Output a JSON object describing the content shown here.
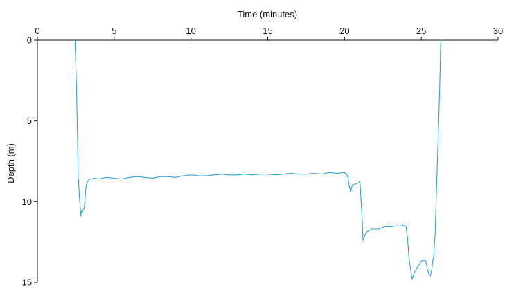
{
  "chart_data": {
    "type": "line",
    "xlabel": "Time (minutes)",
    "ylabel": "Depth (m)",
    "xlim": [
      0,
      30
    ],
    "ylim": [
      0,
      15
    ],
    "y_inverted": true,
    "x_axis_position": "top",
    "grid": false,
    "x_ticks": [
      0,
      5,
      10,
      15,
      20,
      25,
      30
    ],
    "y_ticks": [
      0,
      5,
      10,
      15
    ],
    "line_color": "#29a3dc",
    "series": [
      {
        "x": [
          2.45,
          2.55,
          2.62,
          2.66,
          2.68,
          2.72,
          2.8,
          2.83,
          2.85,
          2.92,
          2.97,
          3.05,
          3.1,
          3.15,
          3.2,
          3.3,
          3.4,
          3.5,
          3.7,
          4.0,
          4.5,
          5.0,
          5.5,
          6.0,
          6.5,
          7.0,
          7.5,
          8.0,
          8.5,
          9.0,
          9.5,
          10.0,
          10.5,
          11.0,
          11.5,
          12.0,
          12.5,
          13.0,
          13.5,
          14.0,
          14.5,
          15.0,
          15.5,
          16.0,
          16.5,
          17.0,
          17.5,
          18.0,
          18.5,
          19.0,
          19.5,
          20.0,
          20.1,
          20.2,
          20.3,
          20.4,
          20.5,
          20.7,
          20.9,
          21.0,
          21.05,
          21.1,
          21.15,
          21.2,
          21.4,
          21.8,
          22.2,
          22.6,
          23.0,
          23.4,
          23.6,
          23.7,
          23.75,
          23.8,
          23.85,
          23.9,
          24.0,
          24.1,
          24.2,
          24.4,
          24.6,
          24.8,
          25.0,
          25.2,
          25.3,
          25.4,
          25.5,
          25.6,
          25.7,
          25.75,
          25.8,
          25.9,
          26.0,
          26.1,
          26.2,
          26.27
        ],
        "y": [
          0,
          3.0,
          6.5,
          8.8,
          8.6,
          9.5,
          10.5,
          10.9,
          10.6,
          10.7,
          10.5,
          10.4,
          9.8,
          9.2,
          8.9,
          8.7,
          8.6,
          8.6,
          8.55,
          8.6,
          8.5,
          8.55,
          8.6,
          8.5,
          8.45,
          8.5,
          8.55,
          8.45,
          8.45,
          8.5,
          8.4,
          8.35,
          8.4,
          8.4,
          8.35,
          8.3,
          8.35,
          8.35,
          8.3,
          8.35,
          8.3,
          8.3,
          8.35,
          8.3,
          8.25,
          8.3,
          8.3,
          8.25,
          8.3,
          8.2,
          8.25,
          8.2,
          8.3,
          8.4,
          9.0,
          9.4,
          9.0,
          8.9,
          8.85,
          8.7,
          9.5,
          10.3,
          11.0,
          12.4,
          11.9,
          11.7,
          11.7,
          11.55,
          11.55,
          11.5,
          11.5,
          11.5,
          11.5,
          11.45,
          11.5,
          11.5,
          11.5,
          12.2,
          13.5,
          14.8,
          14.3,
          14.0,
          13.7,
          13.6,
          13.7,
          14.2,
          14.5,
          14.6,
          14.1,
          13.6,
          13.5,
          12.0,
          9.0,
          6.0,
          3.0,
          0
        ]
      }
    ]
  }
}
